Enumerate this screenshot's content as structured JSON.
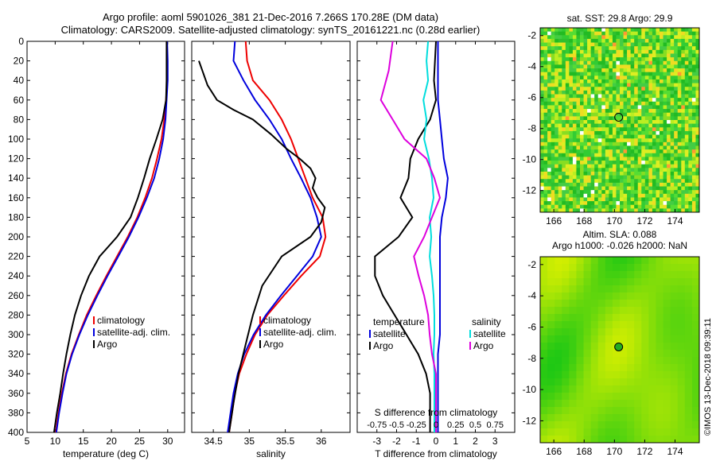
{
  "title_line1": "Argo profile: aoml 5901026_381 21-Dec-2016 7.266S 170.28E (DM data)",
  "title_line2": "Climatology: CARS2009. Satellite-adjusted climatology: synTS_20161221.nc (0.28d earlier)",
  "credit": "©IMOS 13-Dec-2018 09:39:11",
  "colors": {
    "climatology": "#ee0000",
    "satellite": "#0000dd",
    "argo": "#000000",
    "sat_diff": "#00dddd",
    "argo_diff": "#dd00dd"
  },
  "chart_data": [
    {
      "id": "temperature",
      "type": "line",
      "xlabel": "temperature (deg C)",
      "xlim": [
        5,
        33
      ],
      "xticks": [
        5,
        10,
        15,
        20,
        25,
        30
      ],
      "ylim": [
        0,
        400
      ],
      "yticks": [
        0,
        20,
        40,
        60,
        80,
        100,
        120,
        140,
        160,
        180,
        200,
        220,
        240,
        260,
        280,
        300,
        320,
        340,
        360,
        380,
        400
      ],
      "legend": [
        "climatology",
        "satellite-adj. clim.",
        "Argo"
      ],
      "series": [
        {
          "name": "climatology",
          "color": "climatology",
          "points": [
            [
              29.8,
              0
            ],
            [
              29.9,
              20
            ],
            [
              29.9,
              40
            ],
            [
              29.7,
              60
            ],
            [
              29.4,
              80
            ],
            [
              28.9,
              100
            ],
            [
              28.1,
              120
            ],
            [
              27.2,
              140
            ],
            [
              26.0,
              160
            ],
            [
              24.6,
              180
            ],
            [
              22.9,
              200
            ],
            [
              21.0,
              220
            ],
            [
              19.1,
              240
            ],
            [
              17.3,
              260
            ],
            [
              15.6,
              280
            ],
            [
              14.2,
              300
            ],
            [
              12.9,
              320
            ],
            [
              11.9,
              340
            ],
            [
              11.2,
              360
            ],
            [
              10.6,
              380
            ],
            [
              10.1,
              400
            ]
          ]
        },
        {
          "name": "satellite-adj. clim.",
          "color": "satellite",
          "points": [
            [
              29.9,
              0
            ],
            [
              30.0,
              20
            ],
            [
              30.0,
              40
            ],
            [
              29.8,
              60
            ],
            [
              29.6,
              80
            ],
            [
              29.2,
              100
            ],
            [
              28.5,
              120
            ],
            [
              27.6,
              140
            ],
            [
              26.3,
              160
            ],
            [
              24.8,
              180
            ],
            [
              23.1,
              200
            ],
            [
              21.2,
              220
            ],
            [
              19.3,
              240
            ],
            [
              17.5,
              260
            ],
            [
              15.8,
              280
            ],
            [
              14.3,
              300
            ],
            [
              13.0,
              320
            ],
            [
              12.0,
              340
            ],
            [
              11.3,
              360
            ],
            [
              10.7,
              380
            ],
            [
              10.2,
              400
            ]
          ]
        },
        {
          "name": "Argo",
          "color": "argo",
          "points": [
            [
              29.8,
              0
            ],
            [
              29.8,
              20
            ],
            [
              29.8,
              40
            ],
            [
              29.7,
              60
            ],
            [
              29.1,
              80
            ],
            [
              28.0,
              100
            ],
            [
              26.8,
              120
            ],
            [
              25.8,
              140
            ],
            [
              24.7,
              160
            ],
            [
              23.4,
              180
            ],
            [
              21.0,
              200
            ],
            [
              17.9,
              220
            ],
            [
              16.0,
              240
            ],
            [
              14.6,
              260
            ],
            [
              13.5,
              280
            ],
            [
              12.7,
              300
            ],
            [
              12.0,
              320
            ],
            [
              11.4,
              340
            ],
            [
              10.9,
              360
            ],
            [
              10.3,
              380
            ],
            [
              9.8,
              400
            ]
          ]
        }
      ]
    },
    {
      "id": "salinity",
      "type": "line",
      "xlabel": "salinity",
      "xlim": [
        34.2,
        36.4
      ],
      "xticks": [
        34.5,
        35,
        35.5,
        36
      ],
      "xtick_labels": [
        "34.5",
        "35",
        "35.5",
        "36"
      ],
      "ylim": [
        0,
        400
      ],
      "legend": [
        "climatology",
        "satellite-adj. clim.",
        "Argo"
      ],
      "series": [
        {
          "name": "climatology",
          "color": "climatology",
          "points": [
            [
              34.95,
              0
            ],
            [
              34.97,
              20
            ],
            [
              35.05,
              40
            ],
            [
              35.28,
              60
            ],
            [
              35.45,
              80
            ],
            [
              35.58,
              100
            ],
            [
              35.68,
              120
            ],
            [
              35.78,
              140
            ],
            [
              35.88,
              160
            ],
            [
              36.02,
              180
            ],
            [
              36.06,
              200
            ],
            [
              35.98,
              220
            ],
            [
              35.72,
              240
            ],
            [
              35.48,
              260
            ],
            [
              35.25,
              280
            ],
            [
              35.08,
              300
            ],
            [
              34.96,
              320
            ],
            [
              34.86,
              340
            ],
            [
              34.8,
              360
            ],
            [
              34.76,
              380
            ],
            [
              34.72,
              400
            ]
          ]
        },
        {
          "name": "satellite-adj. clim.",
          "color": "satellite",
          "points": [
            [
              34.8,
              0
            ],
            [
              34.78,
              20
            ],
            [
              34.92,
              40
            ],
            [
              35.08,
              60
            ],
            [
              35.28,
              80
            ],
            [
              35.45,
              100
            ],
            [
              35.58,
              120
            ],
            [
              35.72,
              140
            ],
            [
              35.85,
              160
            ],
            [
              35.94,
              180
            ],
            [
              36.0,
              200
            ],
            [
              35.88,
              220
            ],
            [
              35.66,
              240
            ],
            [
              35.44,
              260
            ],
            [
              35.23,
              280
            ],
            [
              35.06,
              300
            ],
            [
              34.93,
              320
            ],
            [
              34.84,
              340
            ],
            [
              34.78,
              360
            ],
            [
              34.74,
              380
            ],
            [
              34.7,
              400
            ]
          ]
        },
        {
          "name": "Argo",
          "color": "argo",
          "points": [
            [
              34.3,
              20
            ],
            [
              34.42,
              45
            ],
            [
              34.55,
              60
            ],
            [
              34.78,
              70
            ],
            [
              35.05,
              80
            ],
            [
              35.3,
              95
            ],
            [
              35.52,
              110
            ],
            [
              35.7,
              120
            ],
            [
              35.85,
              130
            ],
            [
              35.92,
              140
            ],
            [
              35.88,
              150
            ],
            [
              35.95,
              160
            ],
            [
              36.05,
              170
            ],
            [
              36.0,
              185
            ],
            [
              35.85,
              200
            ],
            [
              35.45,
              220
            ],
            [
              35.18,
              250
            ],
            [
              35.05,
              280
            ],
            [
              34.95,
              310
            ],
            [
              34.85,
              340
            ],
            [
              34.78,
              370
            ],
            [
              34.72,
              400
            ]
          ]
        }
      ]
    },
    {
      "id": "difference",
      "type": "line",
      "xlabel": "T difference from climatology",
      "xlim": [
        -4,
        4
      ],
      "xticks": [
        -3,
        -2,
        -1,
        0,
        1,
        2,
        3
      ],
      "xlabel2": "S difference from climatology",
      "x2ticks": [
        -0.75,
        -0.5,
        -0.25,
        0,
        0.25,
        0.5,
        0.75
      ],
      "x2tick_labels": [
        "-0.75",
        "-0.5",
        "-0.25",
        "0",
        "0.25",
        "0.5",
        "0.75"
      ],
      "ylim": [
        0,
        400
      ],
      "legend_titles": [
        "temperature",
        "salinity"
      ],
      "legend_t": [
        "satellite",
        "Argo"
      ],
      "legend_s": [
        "satellite",
        "Argo"
      ],
      "series": [
        {
          "name": "T satellite",
          "color": "satellite",
          "points": [
            [
              0.1,
              0
            ],
            [
              0.1,
              40
            ],
            [
              0.1,
              60
            ],
            [
              0.2,
              80
            ],
            [
              0.3,
              100
            ],
            [
              0.4,
              120
            ],
            [
              0.6,
              140
            ],
            [
              0.5,
              160
            ],
            [
              0.3,
              180
            ],
            [
              0.2,
              200
            ],
            [
              0.2,
              220
            ],
            [
              0.2,
              240
            ],
            [
              0.2,
              260
            ],
            [
              0.2,
              280
            ],
            [
              0.2,
              300
            ],
            [
              0.1,
              320
            ],
            [
              0.1,
              340
            ],
            [
              0.1,
              360
            ],
            [
              0.1,
              380
            ],
            [
              0.1,
              400
            ]
          ]
        },
        {
          "name": "T Argo",
          "color": "argo",
          "points": [
            [
              0.0,
              0
            ],
            [
              -0.1,
              40
            ],
            [
              0.0,
              60
            ],
            [
              -0.3,
              80
            ],
            [
              -0.9,
              100
            ],
            [
              -1.3,
              120
            ],
            [
              -1.4,
              140
            ],
            [
              -1.8,
              160
            ],
            [
              -1.2,
              180
            ],
            [
              -1.9,
              200
            ],
            [
              -3.1,
              220
            ],
            [
              -3.1,
              240
            ],
            [
              -2.7,
              260
            ],
            [
              -2.1,
              280
            ],
            [
              -1.5,
              300
            ],
            [
              -0.9,
              320
            ],
            [
              -0.5,
              340
            ],
            [
              -0.3,
              360
            ],
            [
              -0.3,
              380
            ],
            [
              -0.3,
              400
            ]
          ]
        },
        {
          "name": "S satellite",
          "color": "sat_diff",
          "points": [
            [
              -0.1,
              0
            ],
            [
              -0.12,
              20
            ],
            [
              -0.1,
              40
            ],
            [
              -0.16,
              60
            ],
            [
              -0.12,
              80
            ],
            [
              -0.15,
              100
            ],
            [
              -0.09,
              120
            ],
            [
              -0.05,
              140
            ],
            [
              -0.03,
              160
            ],
            [
              -0.08,
              180
            ],
            [
              -0.06,
              200
            ],
            [
              -0.08,
              220
            ],
            [
              -0.05,
              240
            ],
            [
              -0.03,
              260
            ],
            [
              -0.02,
              280
            ],
            [
              -0.02,
              300
            ],
            [
              -0.03,
              320
            ],
            [
              -0.02,
              340
            ],
            [
              -0.02,
              360
            ],
            [
              -0.02,
              380
            ],
            [
              -0.02,
              400
            ]
          ]
        },
        {
          "name": "S Argo",
          "color": "argo_diff",
          "points": [
            [
              -0.55,
              0
            ],
            [
              -0.6,
              30
            ],
            [
              -0.7,
              60
            ],
            [
              -0.55,
              80
            ],
            [
              -0.4,
              100
            ],
            [
              -0.12,
              120
            ],
            [
              -0.02,
              140
            ],
            [
              0.05,
              160
            ],
            [
              -0.05,
              180
            ],
            [
              -0.15,
              200
            ],
            [
              -0.28,
              220
            ],
            [
              -0.22,
              240
            ],
            [
              -0.15,
              260
            ],
            [
              -0.1,
              280
            ],
            [
              -0.08,
              300
            ],
            [
              -0.05,
              320
            ],
            [
              0.0,
              340
            ],
            [
              0.0,
              360
            ],
            [
              0.0,
              380
            ],
            [
              0.0,
              400
            ]
          ]
        }
      ]
    },
    {
      "id": "sst_map",
      "type": "heatmap",
      "title": "sat. SST: 29.8 Argo: 29.9",
      "xticks": [
        166,
        168,
        170,
        172,
        174
      ],
      "yticks": [
        -2,
        -4,
        -6,
        -8,
        -10,
        -12
      ],
      "marker": [
        170.28,
        -7.27
      ]
    },
    {
      "id": "sla_map",
      "type": "heatmap",
      "title1": "Altim. SLA: 0.088",
      "title2": "Argo h1000: -0.026 h2000: NaN",
      "xticks": [
        166,
        168,
        170,
        172,
        174
      ],
      "yticks": [
        -2,
        -4,
        -6,
        -8,
        -10,
        -12
      ],
      "marker": [
        170.28,
        -7.27
      ]
    }
  ]
}
